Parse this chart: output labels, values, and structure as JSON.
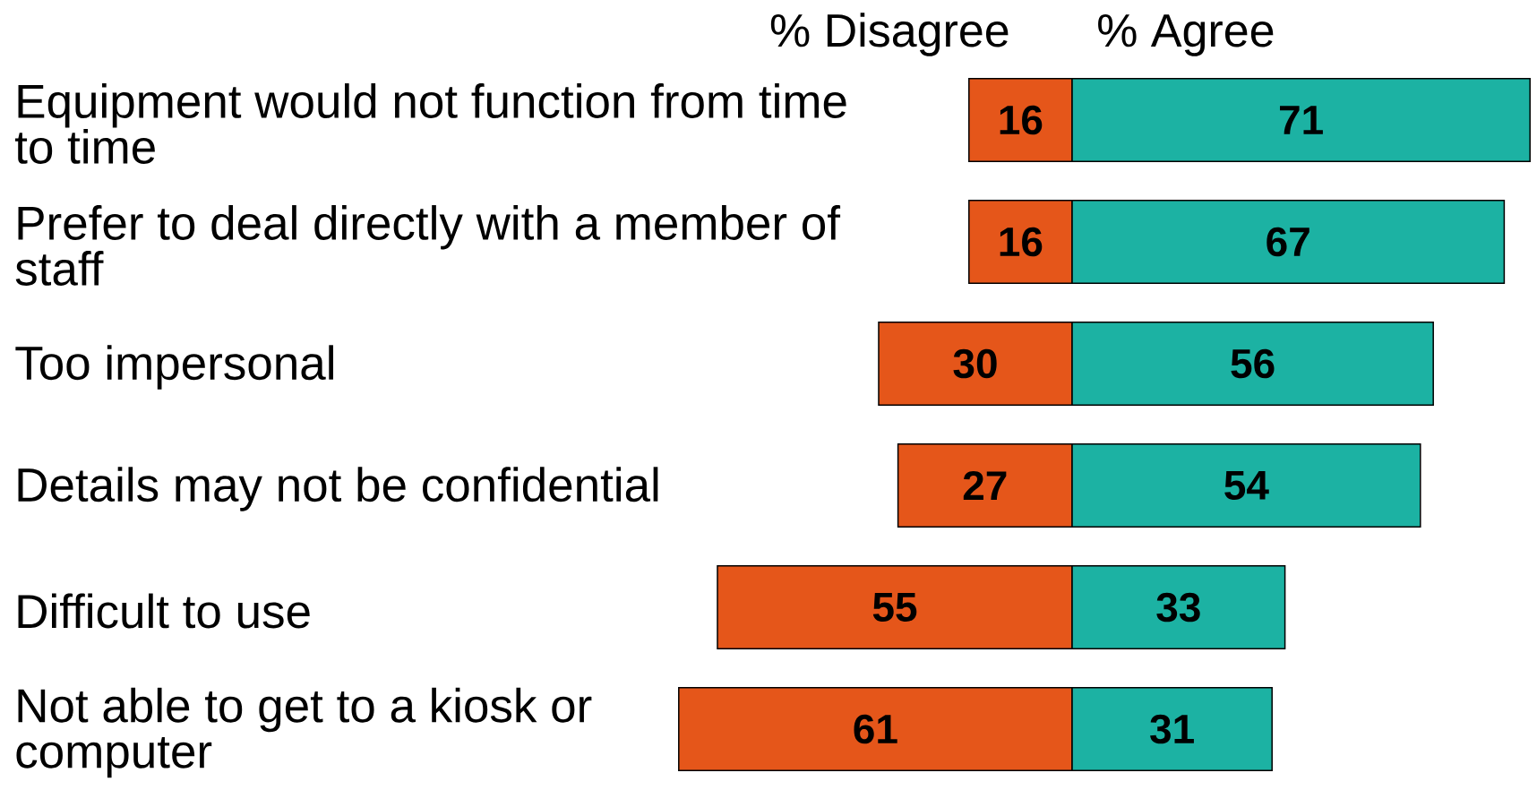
{
  "chart_data": [
    {
      "type": "bar",
      "orientation": "horizontal",
      "title": "% Disagree",
      "categories": [
        "Equipment would not function from time to time",
        "Prefer to deal directly with a member of staff",
        "Too impersonal",
        "Details may not be confidential",
        "Difficult to use",
        "Not able to get to a kiosk or computer"
      ],
      "values": [
        16,
        16,
        30,
        27,
        55,
        61
      ],
      "color": "#e5561a",
      "xlim": [
        61,
        0
      ],
      "data_labels": true,
      "tick_labels": "y"
    },
    {
      "type": "bar",
      "orientation": "horizontal",
      "title": "% Agree",
      "categories": [
        null,
        null,
        null,
        null,
        null,
        null
      ],
      "values": [
        71,
        67,
        56,
        54,
        33,
        31
      ],
      "color": "#1cb2a3",
      "xlim": [
        0,
        71
      ],
      "data_labels": true,
      "tick_labels": false
    }
  ]
}
